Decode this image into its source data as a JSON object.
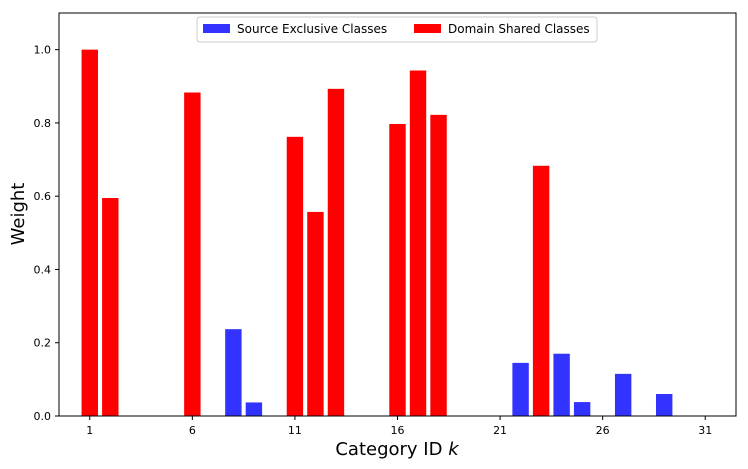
{
  "chart_data": {
    "type": "bar",
    "xlabel": "Category ID",
    "xlabel_var": "k",
    "ylabel": "Weight",
    "xlim": [
      -0.5,
      32.5
    ],
    "ylim": [
      0,
      1.1
    ],
    "x_ticks": [
      1,
      6,
      11,
      16,
      21,
      26,
      31
    ],
    "y_ticks": [
      0.0,
      0.2,
      0.4,
      0.6,
      0.8,
      1.0
    ],
    "legend_position": "top-center",
    "grid": false,
    "series": [
      {
        "name": "Source Exclusive Classes",
        "color": "#3333ff",
        "points": [
          {
            "x": 8,
            "y": 0.237
          },
          {
            "x": 9,
            "y": 0.037
          },
          {
            "x": 22,
            "y": 0.145
          },
          {
            "x": 24,
            "y": 0.17
          },
          {
            "x": 25,
            "y": 0.038
          },
          {
            "x": 27,
            "y": 0.115
          },
          {
            "x": 29,
            "y": 0.06
          }
        ]
      },
      {
        "name": "Domain Shared Classes",
        "color": "#ff0000",
        "points": [
          {
            "x": 1,
            "y": 1.0
          },
          {
            "x": 2,
            "y": 0.595
          },
          {
            "x": 6,
            "y": 0.883
          },
          {
            "x": 11,
            "y": 0.762
          },
          {
            "x": 12,
            "y": 0.557
          },
          {
            "x": 13,
            "y": 0.893
          },
          {
            "x": 16,
            "y": 0.797
          },
          {
            "x": 17,
            "y": 0.943
          },
          {
            "x": 18,
            "y": 0.822
          },
          {
            "x": 23,
            "y": 0.683
          }
        ]
      }
    ]
  }
}
